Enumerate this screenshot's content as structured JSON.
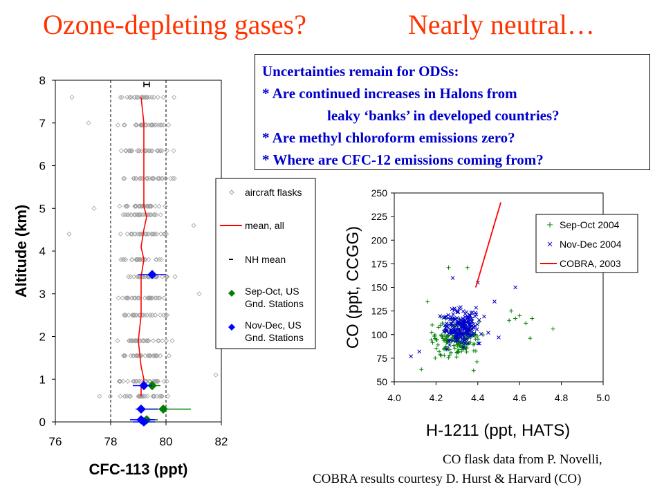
{
  "slide": {
    "title_left": "Ozone-depleting gases?",
    "title_right": "Nearly neutral…",
    "uncertainties": [
      "Uncertainties remain for ODSs:",
      "* Are continued increases in Halons from",
      "leaky ‘banks’ in developed countries?",
      "* Are methyl chloroform emissions zero?",
      "* Where are CFC-12 emissions coming from?"
    ],
    "credits": [
      "CO flask data from P. Novelli,",
      "COBRA results courtesy D. Hurst & Harvard (CO)"
    ]
  },
  "chart_data": [
    {
      "type": "scatter",
      "xlabel": "CFC-113 (ppt)",
      "ylabel": "Altitude (km)",
      "xlim": [
        76,
        82
      ],
      "ylim": [
        0,
        8
      ],
      "xticks": [
        "76",
        "78",
        "80",
        "82"
      ],
      "yticks": [
        "0",
        "1",
        "2",
        "3",
        "4",
        "5",
        "6",
        "7",
        "8"
      ],
      "grid": false,
      "reference_lines_x": [
        78,
        80
      ],
      "legend": {
        "placement": "right",
        "entries": [
          "aircraft flasks",
          "mean, all",
          "NH mean",
          "Sep-Oct, US Gnd. Stations",
          "Nov-Dec, US Gnd. Stations"
        ]
      },
      "series": [
        {
          "name": "aircraft flasks",
          "levels": [
            0.6,
            0.95,
            1.55,
            1.9,
            2.5,
            2.9,
            3.4,
            3.8,
            4.4,
            4.85,
            5.05,
            5.7,
            6.35,
            6.95,
            7.6
          ],
          "x_min": 77.4,
          "x_max": 81.8,
          "outliers": [
            [
              77.2,
              7.0
            ],
            [
              76.6,
              7.6
            ],
            [
              76.5,
              4.4
            ],
            [
              81.0,
              4.6
            ],
            [
              81.8,
              1.1
            ],
            [
              77.6,
              0.6
            ],
            [
              77.4,
              5.0
            ],
            [
              81.2,
              3.0
            ]
          ],
          "color": "#a0a0a0"
        },
        {
          "name": "mean, all",
          "points": [
            [
              79.1,
              0.6
            ],
            [
              79.1,
              0.8
            ],
            [
              79.2,
              1.0
            ],
            [
              79.1,
              1.3
            ],
            [
              79.0,
              1.9
            ],
            [
              79.1,
              2.5
            ],
            [
              79.1,
              3.0
            ],
            [
              79.1,
              3.4
            ],
            [
              79.2,
              3.8
            ],
            [
              79.1,
              4.1
            ],
            [
              79.2,
              4.5
            ],
            [
              79.3,
              4.8
            ],
            [
              79.2,
              5.05
            ],
            [
              79.2,
              5.7
            ],
            [
              79.2,
              6.35
            ],
            [
              79.2,
              7.0
            ],
            [
              79.1,
              7.6
            ]
          ],
          "color": "#ff0000"
        },
        {
          "name": "NH mean",
          "points": [
            [
              79.3,
              7.9
            ]
          ],
          "color": "#000000"
        },
        {
          "name": "Sep-Oct, US Gnd. Stations",
          "points": [
            [
              79.5,
              0.85
            ],
            [
              79.9,
              0.3
            ],
            [
              79.3,
              0.05
            ]
          ],
          "xerr": [
            [
              79.1,
              79.8
            ],
            [
              79.2,
              80.9
            ],
            [
              78.9,
              79.7
            ]
          ],
          "color": "#008000"
        },
        {
          "name": "Nov-Dec, US Gnd. Stations",
          "points": [
            [
              79.5,
              3.45
            ],
            [
              79.2,
              0.85
            ],
            [
              79.1,
              0.3
            ],
            [
              79.1,
              0.05
            ],
            [
              79.2,
              0.0
            ]
          ],
          "xerr": [
            [
              79.0,
              80.0
            ],
            [
              78.8,
              79.5
            ],
            [
              78.9,
              79.7
            ],
            [
              78.7,
              79.6
            ],
            [
              78.8,
              79.6
            ]
          ],
          "color": "#0000ff"
        }
      ]
    },
    {
      "type": "scatter",
      "xlabel": "H-1211 (ppt, HATS)",
      "ylabel": "CO (ppt, CCGG)",
      "xlim": [
        4.0,
        5.0
      ],
      "ylim": [
        50,
        250
      ],
      "xticks": [
        "4.0",
        "4.2",
        "4.4",
        "4.6",
        "4.8",
        "5.0"
      ],
      "yticks": [
        "50",
        "75",
        "100",
        "125",
        "150",
        "175",
        "200",
        "225",
        "250"
      ],
      "grid": false,
      "legend": {
        "placement": "top-right",
        "entries": [
          "Sep-Oct 2004",
          "Nov-Dec 2004",
          "COBRA, 2003"
        ]
      },
      "series": [
        {
          "name": "Sep-Oct 2004",
          "marker": "+",
          "color": "#008000",
          "x_center": 4.3,
          "y_center": 95,
          "x_spread": 0.12,
          "y_spread": 22,
          "count": 160,
          "extra_points": [
            [
              4.26,
              171
            ],
            [
              4.35,
              171
            ],
            [
              4.16,
              135
            ],
            [
              4.56,
              125
            ],
            [
              4.6,
              120
            ],
            [
              4.63,
              112
            ],
            [
              4.66,
              117
            ],
            [
              4.76,
              106
            ],
            [
              4.65,
              96
            ],
            [
              4.13,
              63
            ],
            [
              4.38,
              62
            ],
            [
              4.55,
              115
            ],
            [
              4.58,
              117
            ]
          ]
        },
        {
          "name": "Nov-Dec 2004",
          "marker": "x",
          "color": "#0000cc",
          "x_center": 4.32,
          "y_center": 108,
          "x_spread": 0.1,
          "y_spread": 20,
          "count": 200,
          "extra_points": [
            [
              4.28,
              160
            ],
            [
              4.4,
              155
            ],
            [
              4.58,
              150
            ],
            [
              4.48,
              135
            ],
            [
              4.08,
              77
            ],
            [
              4.12,
              82
            ],
            [
              4.5,
              97
            ],
            [
              4.45,
              102
            ]
          ]
        },
        {
          "name": "COBRA, 2003",
          "type": "line",
          "points": [
            [
              4.39,
              150
            ],
            [
              4.51,
              240
            ]
          ],
          "color": "#ff0000"
        }
      ]
    }
  ]
}
